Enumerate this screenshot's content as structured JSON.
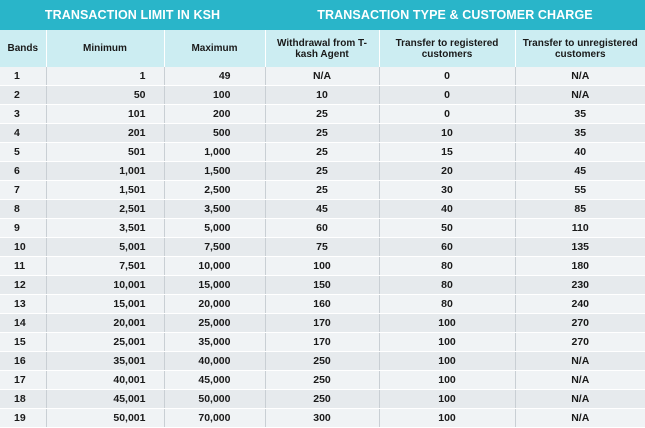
{
  "group_headers": {
    "left": "TRANSACTION LIMIT IN KSH",
    "right": "TRANSACTION TYPE & CUSTOMER CHARGE"
  },
  "columns": [
    "Bands",
    "Minimum",
    "Maximum",
    "Withdrawal from T-kash Agent",
    "Transfer to registered customers",
    "Transfer to unregistered customers"
  ],
  "rows": [
    [
      "1",
      "1",
      "49",
      "N/A",
      "0",
      "N/A"
    ],
    [
      "2",
      "50",
      "100",
      "10",
      "0",
      "N/A"
    ],
    [
      "3",
      "101",
      "200",
      "25",
      "0",
      "35"
    ],
    [
      "4",
      "201",
      "500",
      "25",
      "10",
      "35"
    ],
    [
      "5",
      "501",
      "1,000",
      "25",
      "15",
      "40"
    ],
    [
      "6",
      "1,001",
      "1,500",
      "25",
      "20",
      "45"
    ],
    [
      "7",
      "1,501",
      "2,500",
      "25",
      "30",
      "55"
    ],
    [
      "8",
      "2,501",
      "3,500",
      "45",
      "40",
      "85"
    ],
    [
      "9",
      "3,501",
      "5,000",
      "60",
      "50",
      "110"
    ],
    [
      "10",
      "5,001",
      "7,500",
      "75",
      "60",
      "135"
    ],
    [
      "11",
      "7,501",
      "10,000",
      "100",
      "80",
      "180"
    ],
    [
      "12",
      "10,001",
      "15,000",
      "150",
      "80",
      "230"
    ],
    [
      "13",
      "15,001",
      "20,000",
      "160",
      "80",
      "240"
    ],
    [
      "14",
      "20,001",
      "25,000",
      "170",
      "100",
      "270"
    ],
    [
      "15",
      "25,001",
      "35,000",
      "170",
      "100",
      "270"
    ],
    [
      "16",
      "35,001",
      "40,000",
      "250",
      "100",
      "N/A"
    ],
    [
      "17",
      "40,001",
      "45,000",
      "250",
      "100",
      "N/A"
    ],
    [
      "18",
      "45,001",
      "50,000",
      "250",
      "100",
      "N/A"
    ],
    [
      "19",
      "50,001",
      "70,000",
      "300",
      "100",
      "N/A"
    ]
  ],
  "colors": {
    "group_header_bg": "#29b5c9",
    "column_header_bg": "#ccedf2",
    "row_odd_bg": "#f0f3f5",
    "row_even_bg": "#e6eaed"
  }
}
